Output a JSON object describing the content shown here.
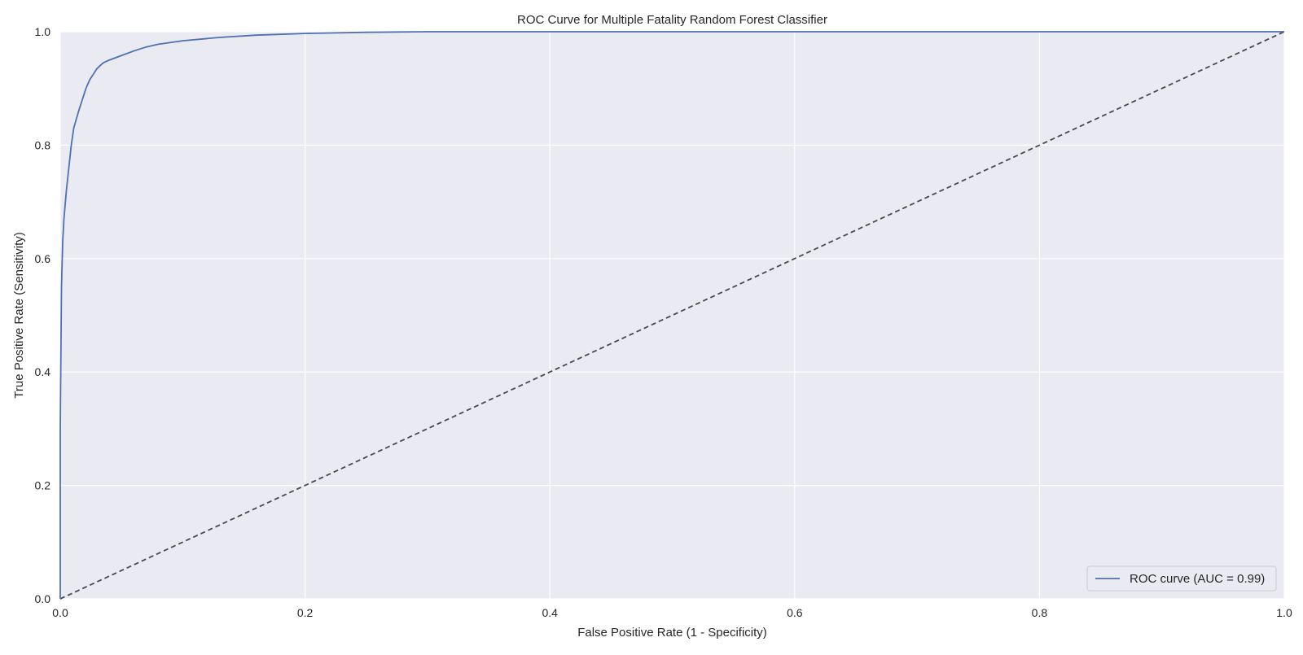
{
  "chart_data": {
    "type": "line",
    "title": "ROC Curve for Multiple Fatality Random Forest Classifier",
    "xlabel": "False Positive Rate (1 - Specificity)",
    "ylabel": "True Positive Rate (Sensitivity)",
    "xlim": [
      0.0,
      1.0
    ],
    "ylim": [
      0.0,
      1.0
    ],
    "x_ticks": [
      0.0,
      0.2,
      0.4,
      0.6,
      0.8,
      1.0
    ],
    "y_ticks": [
      0.0,
      0.2,
      0.4,
      0.6,
      0.8,
      1.0
    ],
    "x_tick_labels": [
      "0.0",
      "0.2",
      "0.4",
      "0.6",
      "0.8",
      "1.0"
    ],
    "y_tick_labels": [
      "0.0",
      "0.2",
      "0.4",
      "0.6",
      "0.8",
      "1.0"
    ],
    "grid": true,
    "legend_position": "lower-right",
    "background_color": "#eaeaf2",
    "grid_color": "#ffffff",
    "series": [
      {
        "name": "ROC curve (AUC = 0.99)",
        "color": "#4c72b0",
        "style": "solid",
        "x": [
          0.0,
          0.0,
          0.001,
          0.002,
          0.003,
          0.005,
          0.007,
          0.009,
          0.011,
          0.013,
          0.015,
          0.018,
          0.021,
          0.024,
          0.027,
          0.03,
          0.035,
          0.04,
          0.05,
          0.06,
          0.07,
          0.08,
          0.1,
          0.13,
          0.16,
          0.2,
          0.25,
          0.3,
          0.4,
          0.5,
          0.6,
          0.8,
          1.0
        ],
        "y": [
          0.0,
          0.3,
          0.55,
          0.63,
          0.67,
          0.72,
          0.76,
          0.8,
          0.83,
          0.845,
          0.86,
          0.88,
          0.9,
          0.915,
          0.925,
          0.935,
          0.945,
          0.95,
          0.958,
          0.966,
          0.973,
          0.978,
          0.984,
          0.99,
          0.994,
          0.997,
          0.999,
          1.0,
          1.0,
          1.0,
          1.0,
          1.0,
          1.0
        ]
      },
      {
        "name": "",
        "color": "#4a4a4a",
        "style": "dashed",
        "x": [
          0.0,
          1.0
        ],
        "y": [
          0.0,
          1.0
        ]
      }
    ]
  }
}
